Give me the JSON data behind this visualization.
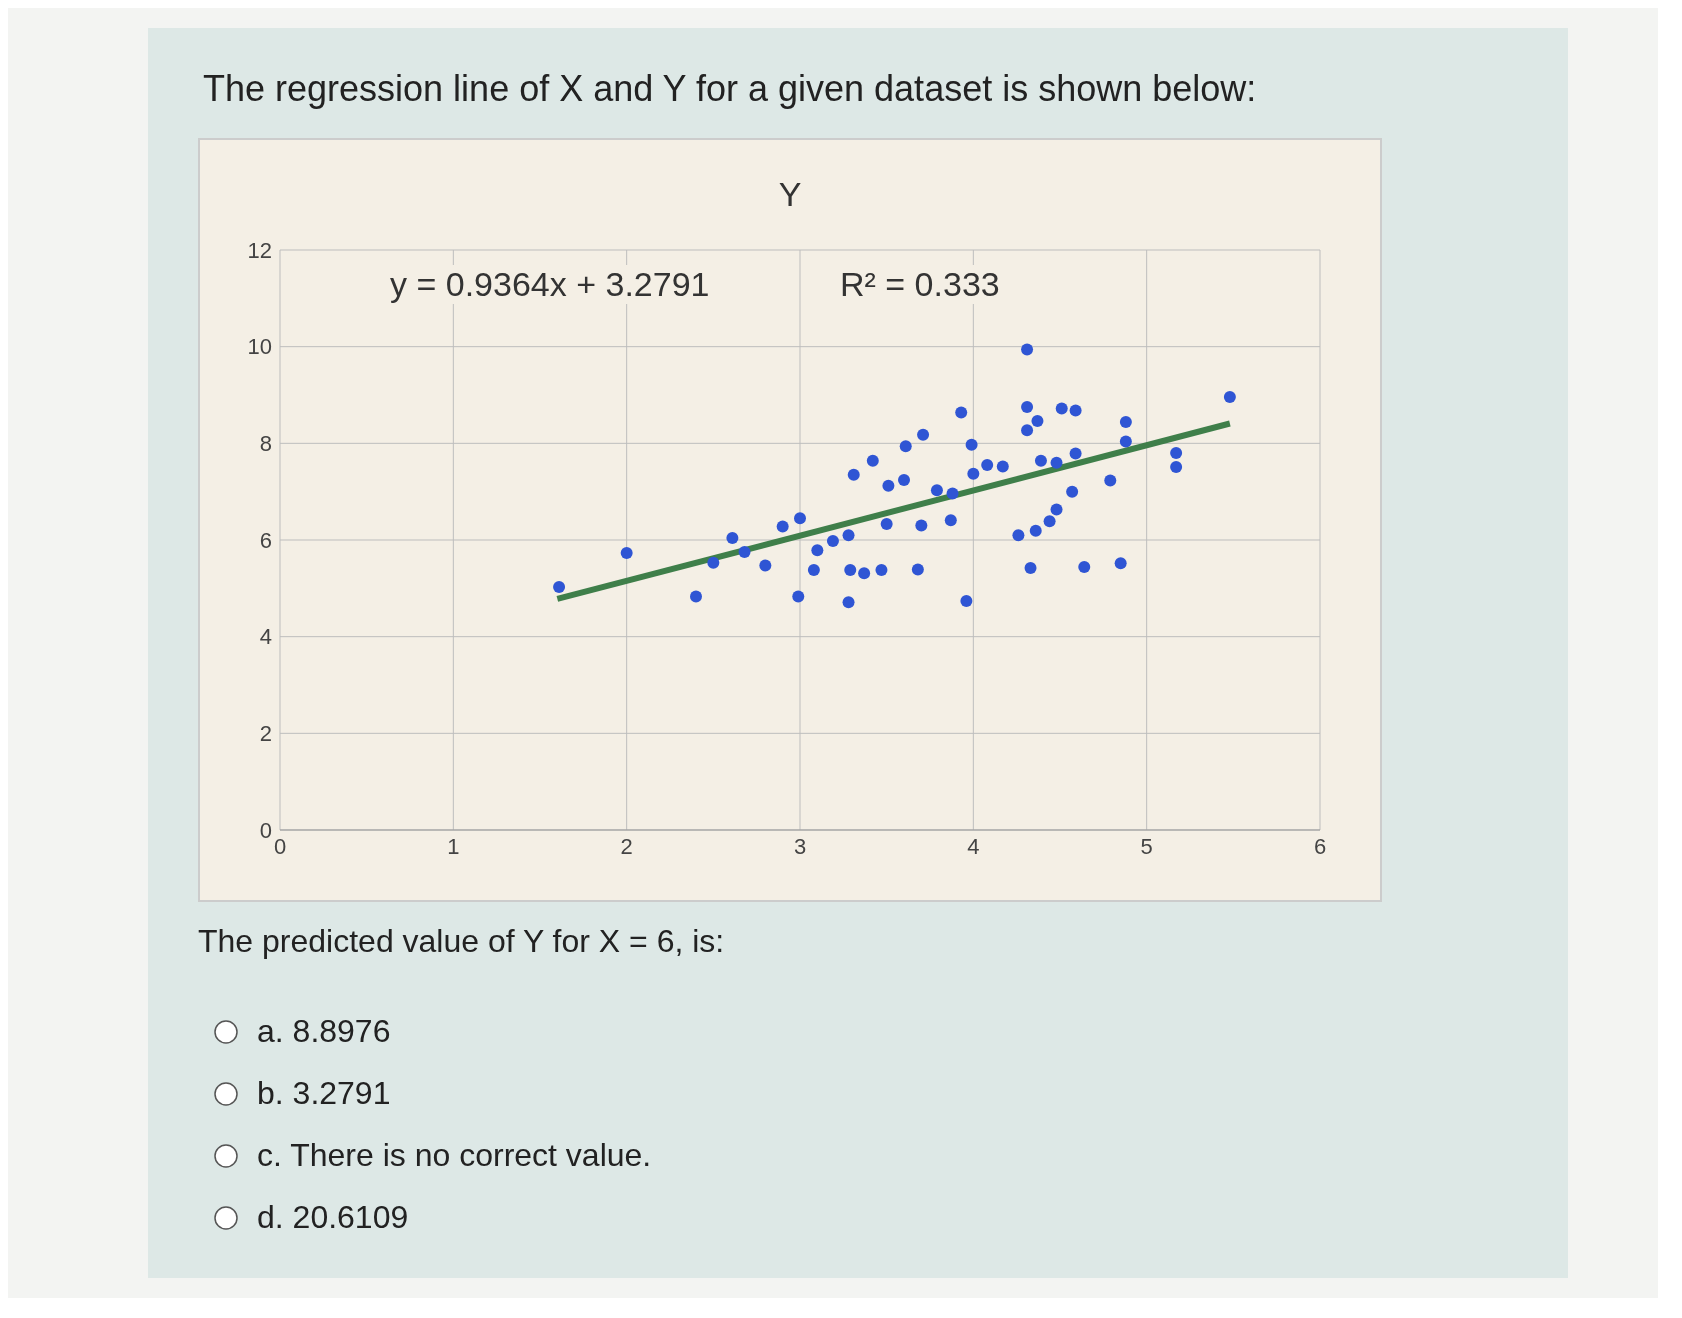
{
  "chart_data": {
    "type": "scatter",
    "title": "Y",
    "annotations": [
      "The regression line of X and Y for a given dataset is shown below:",
      "y = 0.9364x + 3.2791",
      "R² = 0.333",
      "The predicted value of Y for X = 6, is:",
      "a. 8.8976",
      "b. 3.2791",
      "c. There is no correct value.",
      "d. 20.6109"
    ],
    "xlim": [
      0,
      6
    ],
    "xticks": [
      0,
      1,
      2,
      3,
      4,
      5,
      6
    ],
    "ylim": [
      0,
      12
    ],
    "yticks": [
      0,
      2,
      4,
      6,
      8,
      10,
      12
    ],
    "grid": true,
    "series": [
      {
        "marker": "circle",
        "color": "#2f55d4",
        "x": [
          1.61,
          2.0,
          2.4,
          2.5,
          2.61,
          2.68,
          2.8,
          2.9,
          3.0,
          2.99,
          3.08,
          3.1,
          3.19,
          3.28,
          3.28,
          3.29,
          3.37,
          3.47,
          3.31,
          3.42,
          3.5,
          3.51,
          3.6,
          3.61,
          3.71,
          3.68,
          3.7,
          3.79,
          3.87,
          3.88,
          3.93,
          3.96,
          3.99,
          4.0,
          4.08,
          4.17,
          4.26,
          4.31,
          4.31,
          4.31,
          4.33,
          4.36,
          4.37,
          4.44,
          4.48,
          4.51,
          4.59,
          4.57,
          4.59,
          4.64,
          4.79,
          4.85,
          4.88,
          4.88,
          5.17,
          5.17,
          5.48,
          4.39,
          4.48
        ],
        "values": [
          5.03,
          5.73,
          4.83,
          5.53,
          6.04,
          5.75,
          5.47,
          6.28,
          6.45,
          4.83,
          5.38,
          5.79,
          5.98,
          6.1,
          4.71,
          5.38,
          5.31,
          5.38,
          7.35,
          7.64,
          6.33,
          7.12,
          7.24,
          7.94,
          8.18,
          5.39,
          6.3,
          7.03,
          6.41,
          6.96,
          8.64,
          4.74,
          7.97,
          7.37,
          7.55,
          7.52,
          6.1,
          9.94,
          8.75,
          8.27,
          5.42,
          6.19,
          8.46,
          6.39,
          6.63,
          8.72,
          8.68,
          7.0,
          7.79,
          5.44,
          7.23,
          5.52,
          8.44,
          8.04,
          7.8,
          7.51,
          8.96,
          7.64,
          7.6
        ]
      },
      {
        "type": "line",
        "marker": "none",
        "color": "#3f7f4a",
        "line_style": "solid",
        "x": [
          1.6,
          5.48
        ],
        "values": [
          4.78,
          8.41
        ]
      }
    ]
  }
}
